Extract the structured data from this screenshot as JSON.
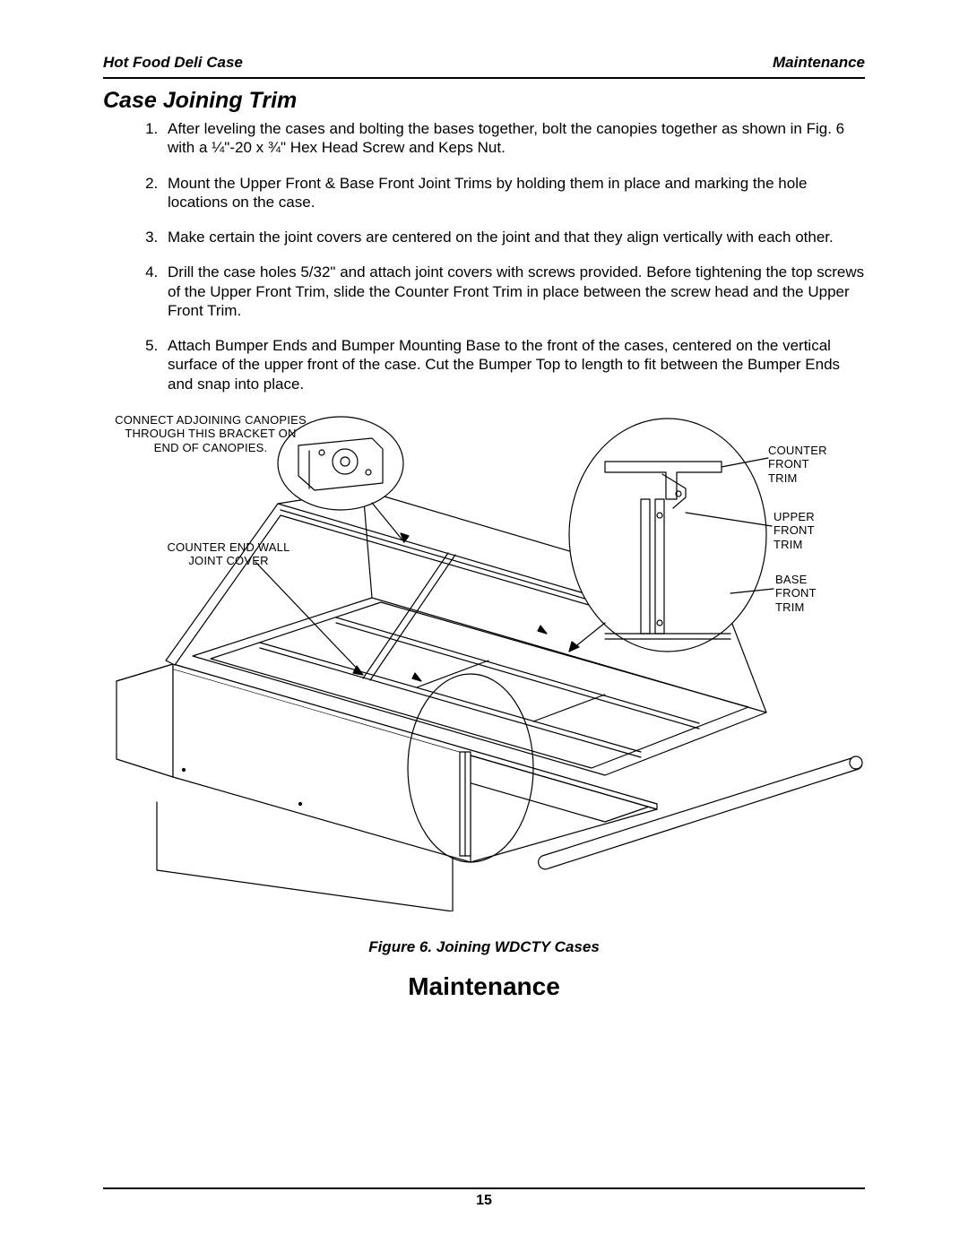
{
  "header": {
    "left": "Hot Food Deli Case",
    "right": "Maintenance"
  },
  "section_title": "Case Joining Trim",
  "steps": [
    "After leveling the cases and bolting the bases together, bolt the canopies together as shown in Fig. 6 with a ¼\"-20 x ¾\" Hex Head Screw and Keps Nut.",
    "Mount the Upper Front & Base Front Joint Trims by holding them in place and marking the hole locations on the case.",
    "Make certain the joint covers are centered on the joint and that they align vertically with each other.",
    "Drill the case holes 5/32\" and attach joint covers with screws provided.  Before tightening the top screws of the Upper Front Trim, slide the Counter Front Trim in place between the screw head and the Upper Front Trim.",
    "Attach Bumper Ends and Bumper Mounting  Base to the front of the cases, centered on the vertical surface of the upper front of the case.  Cut the Bumper Top to length to fit between the Bumper Ends and snap into place."
  ],
  "callouts": {
    "canopy_bracket": "CONNECT ADJOINING CANOPIES\nTHROUGH THIS BRACKET ON\nEND OF CANOPIES.",
    "counter_end_wall": "COUNTER END WALL\nJOINT COVER",
    "counter_front_trim": "COUNTER\nFRONT\nTRIM",
    "upper_front_trim": "UPPER\nFRONT\nTRIM",
    "base_front_trim": "BASE\nFRONT\nTRIM"
  },
  "figure_caption": "Figure 6.  Joining WDCTY Cases",
  "maintenance_heading": "Maintenance",
  "page_number": "15",
  "style": {
    "stroke": "#000000",
    "stroke_width": 1.2,
    "fill": "#ffffff",
    "callout_fontsize": 13,
    "body_fontsize": 17,
    "title_fontsize": 25,
    "heading_fontsize": 28
  }
}
